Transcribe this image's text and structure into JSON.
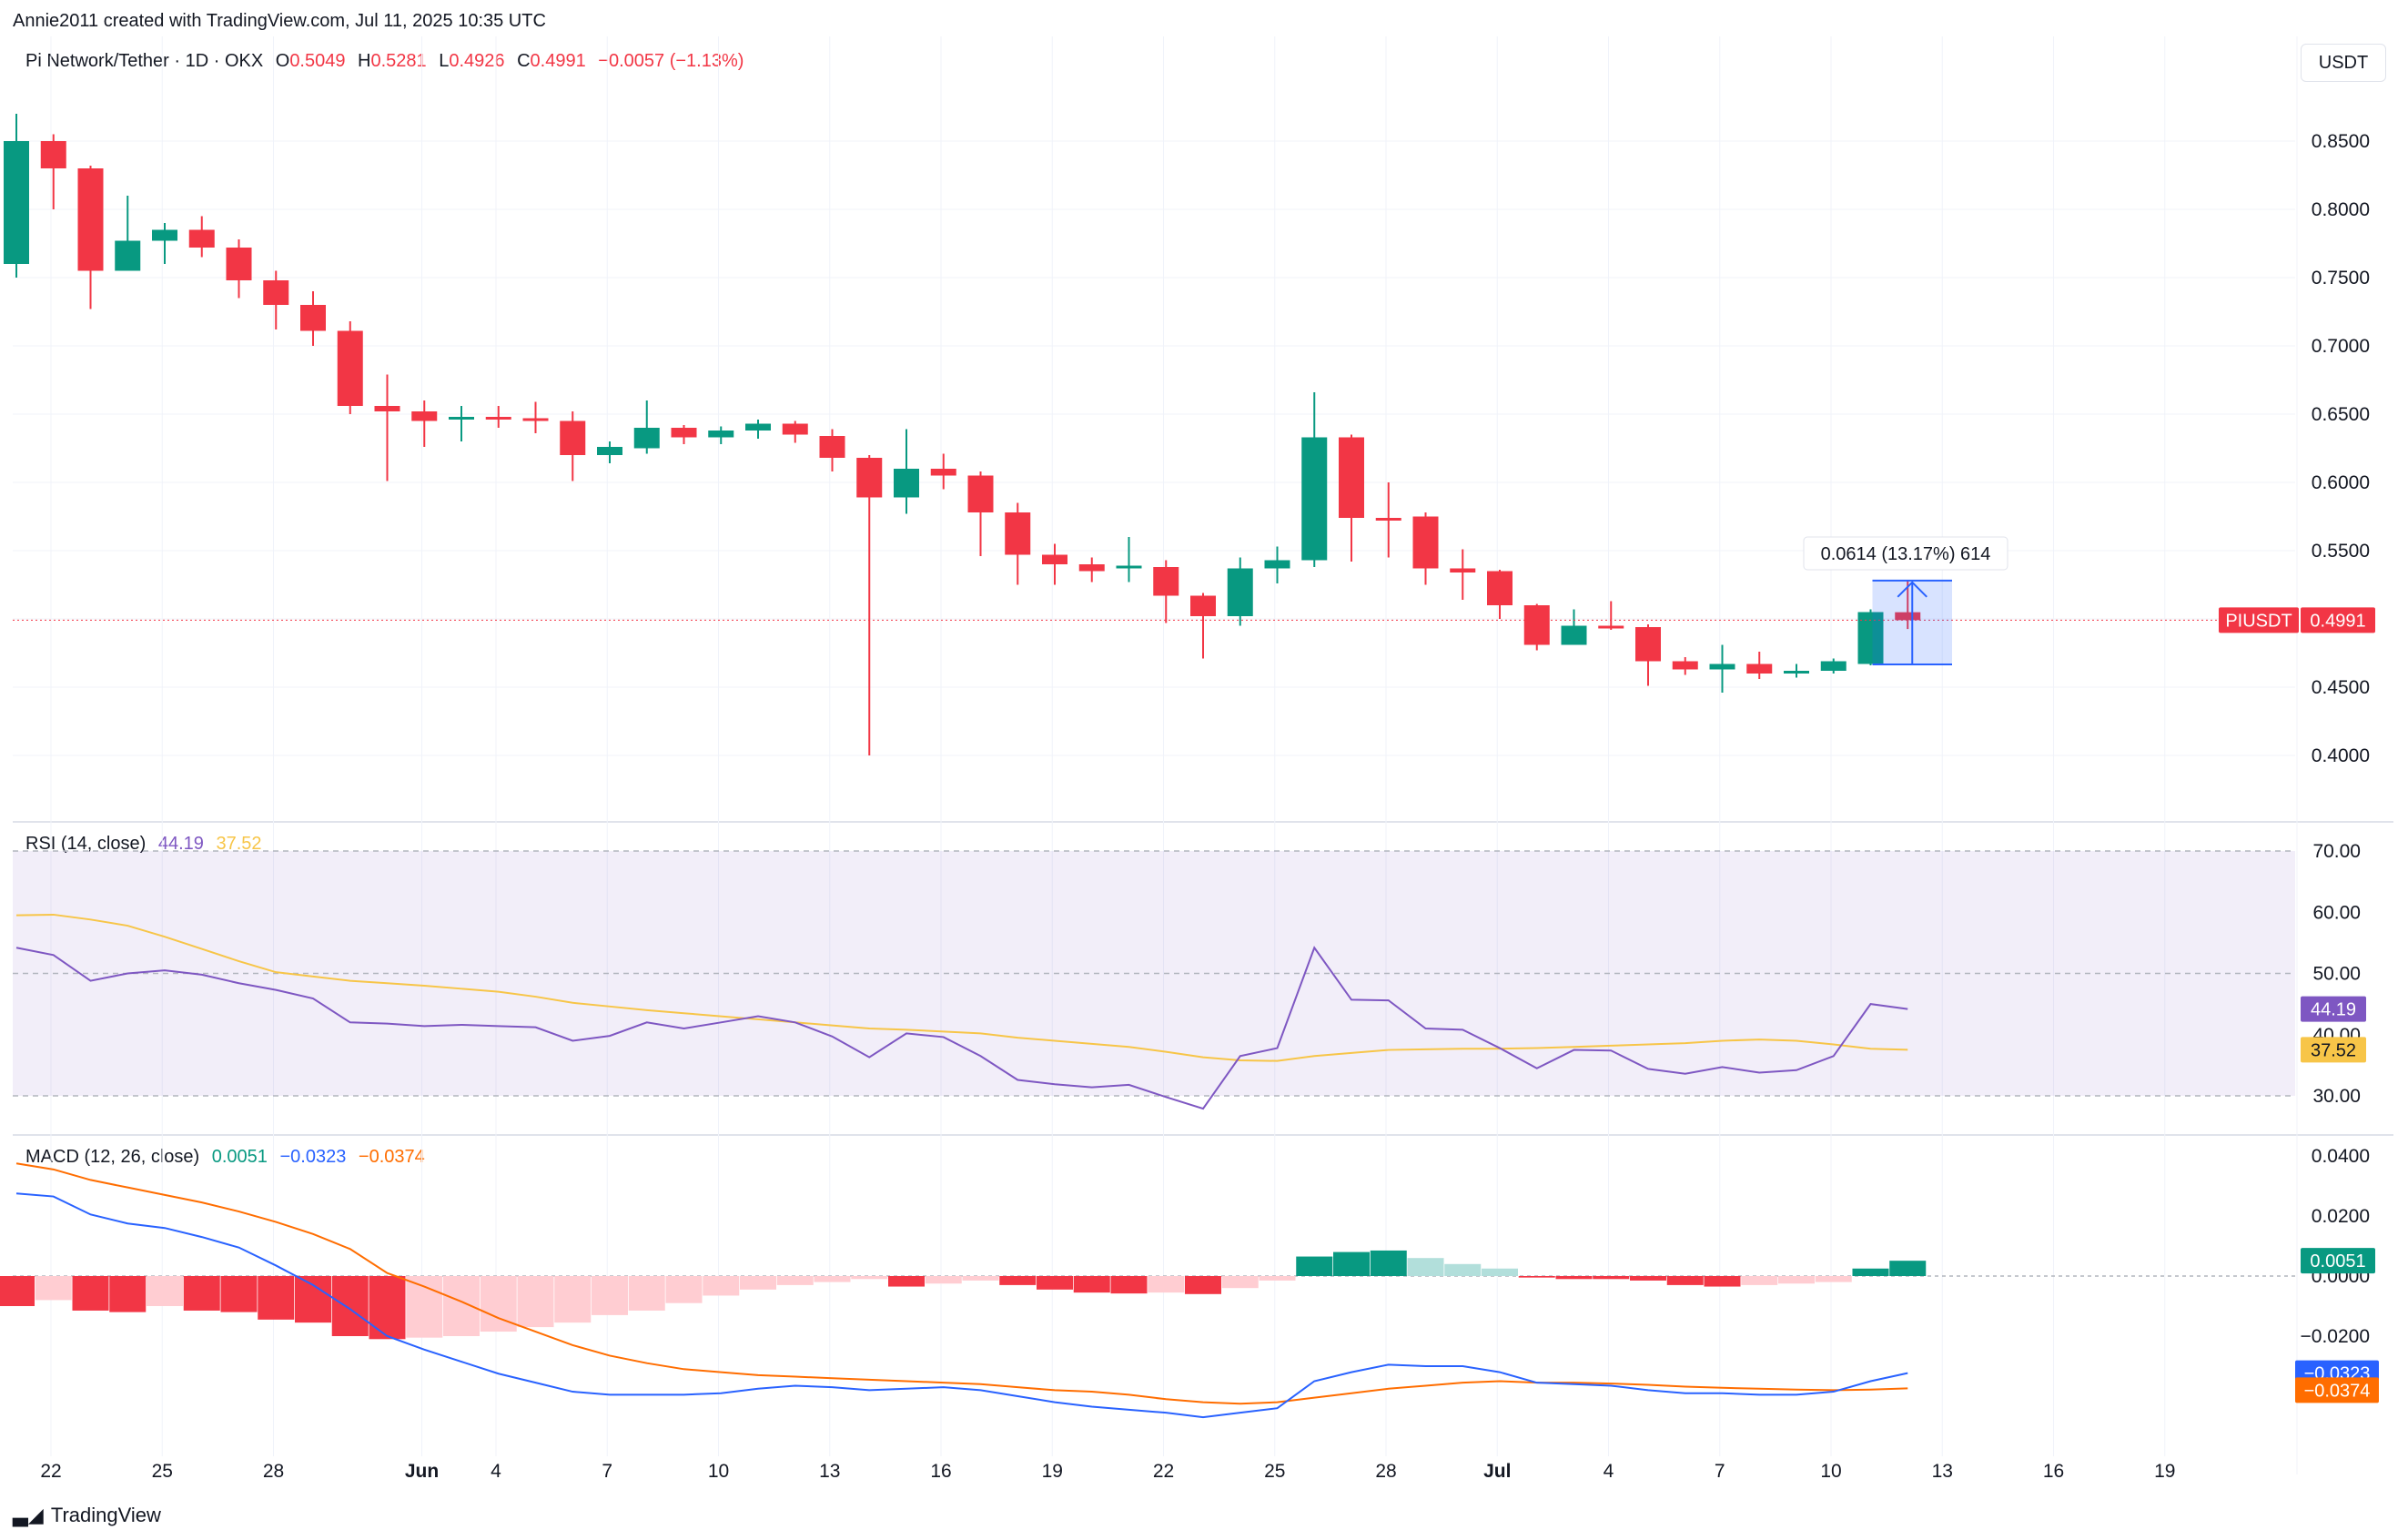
{
  "header": {
    "created_by": "Annie2011 created with TradingView.com, Jul 11, 2025 10:35 UTC",
    "currency": "USDT"
  },
  "price_legend": {
    "symbol": "Pi Network/Tether · 1D · OKX",
    "o_label": "O",
    "o": "0.5049",
    "h_label": "H",
    "h": "0.5281",
    "l_label": "L",
    "l": "0.4926",
    "c_label": "C",
    "c": "0.4991",
    "change": "−0.0057 (−1.13%)"
  },
  "rsi_legend": {
    "label": "RSI (14, close)",
    "rsi": "44.19",
    "ma": "37.52"
  },
  "macd_legend": {
    "label": "MACD (12, 26, close)",
    "hist": "0.0051",
    "macd": "−0.0323",
    "signal": "−0.0374"
  },
  "measure_label": "0.0614 (13.17%) 614",
  "footer": {
    "brand": "TradingView"
  },
  "colors": {
    "up": "#089981",
    "down": "#f23645",
    "rsi": "#7e57c2",
    "rsi_ma": "#f7c548",
    "macd": "#2962ff",
    "signal": "#ff6d00",
    "hist_up_light": "#b2dfdb",
    "hist_down_light": "#ffcdd2"
  },
  "chart_data": [
    {
      "type": "candlestick",
      "title": "Pi Network/Tether · 1D · OKX",
      "x_tick_labels": [
        "22",
        "25",
        "28",
        "Jun",
        "4",
        "7",
        "10",
        "13",
        "16",
        "19",
        "22",
        "25",
        "28",
        "Jul",
        "4",
        "7",
        "10",
        "13",
        "16",
        "19"
      ],
      "y_tick_labels": [
        "0.8500",
        "0.8000",
        "0.7500",
        "0.7000",
        "0.6500",
        "0.6000",
        "0.5500",
        "0.5000",
        "0.4500",
        "0.4000"
      ],
      "ylim": [
        0.377,
        0.874
      ],
      "last_price_label": "PIUSDT",
      "last_price": "0.4991",
      "candles": [
        {
          "o": 0.76,
          "h": 0.87,
          "l": 0.75,
          "c": 0.85
        },
        {
          "o": 0.85,
          "h": 0.855,
          "l": 0.8,
          "c": 0.83
        },
        {
          "o": 0.83,
          "h": 0.832,
          "l": 0.727,
          "c": 0.755
        },
        {
          "o": 0.755,
          "h": 0.81,
          "l": 0.755,
          "c": 0.777
        },
        {
          "o": 0.777,
          "h": 0.79,
          "l": 0.76,
          "c": 0.785
        },
        {
          "o": 0.785,
          "h": 0.795,
          "l": 0.765,
          "c": 0.772
        },
        {
          "o": 0.772,
          "h": 0.778,
          "l": 0.735,
          "c": 0.748
        },
        {
          "o": 0.748,
          "h": 0.755,
          "l": 0.712,
          "c": 0.73
        },
        {
          "o": 0.73,
          "h": 0.74,
          "l": 0.7,
          "c": 0.711
        },
        {
          "o": 0.711,
          "h": 0.718,
          "l": 0.65,
          "c": 0.656
        },
        {
          "o": 0.656,
          "h": 0.679,
          "l": 0.601,
          "c": 0.652
        },
        {
          "o": 0.652,
          "h": 0.66,
          "l": 0.626,
          "c": 0.645
        },
        {
          "o": 0.646,
          "h": 0.656,
          "l": 0.63,
          "c": 0.648
        },
        {
          "o": 0.648,
          "h": 0.656,
          "l": 0.64,
          "c": 0.646
        },
        {
          "o": 0.647,
          "h": 0.659,
          "l": 0.636,
          "c": 0.645
        },
        {
          "o": 0.645,
          "h": 0.652,
          "l": 0.601,
          "c": 0.62
        },
        {
          "o": 0.62,
          "h": 0.63,
          "l": 0.614,
          "c": 0.626
        },
        {
          "o": 0.625,
          "h": 0.66,
          "l": 0.621,
          "c": 0.64
        },
        {
          "o": 0.64,
          "h": 0.642,
          "l": 0.628,
          "c": 0.633
        },
        {
          "o": 0.633,
          "h": 0.641,
          "l": 0.628,
          "c": 0.638
        },
        {
          "o": 0.638,
          "h": 0.646,
          "l": 0.632,
          "c": 0.643
        },
        {
          "o": 0.643,
          "h": 0.645,
          "l": 0.629,
          "c": 0.635
        },
        {
          "o": 0.634,
          "h": 0.639,
          "l": 0.608,
          "c": 0.618
        },
        {
          "o": 0.618,
          "h": 0.62,
          "l": 0.4,
          "c": 0.589
        },
        {
          "o": 0.589,
          "h": 0.639,
          "l": 0.577,
          "c": 0.61
        },
        {
          "o": 0.61,
          "h": 0.621,
          "l": 0.595,
          "c": 0.605
        },
        {
          "o": 0.605,
          "h": 0.608,
          "l": 0.546,
          "c": 0.578
        },
        {
          "o": 0.578,
          "h": 0.585,
          "l": 0.525,
          "c": 0.547
        },
        {
          "o": 0.547,
          "h": 0.555,
          "l": 0.525,
          "c": 0.54
        },
        {
          "o": 0.54,
          "h": 0.545,
          "l": 0.527,
          "c": 0.535
        },
        {
          "o": 0.537,
          "h": 0.56,
          "l": 0.527,
          "c": 0.539
        },
        {
          "o": 0.538,
          "h": 0.543,
          "l": 0.497,
          "c": 0.517
        },
        {
          "o": 0.517,
          "h": 0.519,
          "l": 0.471,
          "c": 0.502
        },
        {
          "o": 0.502,
          "h": 0.545,
          "l": 0.495,
          "c": 0.537
        },
        {
          "o": 0.537,
          "h": 0.553,
          "l": 0.526,
          "c": 0.543
        },
        {
          "o": 0.543,
          "h": 0.666,
          "l": 0.538,
          "c": 0.633
        },
        {
          "o": 0.633,
          "h": 0.635,
          "l": 0.542,
          "c": 0.574
        },
        {
          "o": 0.574,
          "h": 0.6,
          "l": 0.545,
          "c": 0.573
        },
        {
          "o": 0.575,
          "h": 0.578,
          "l": 0.525,
          "c": 0.537
        },
        {
          "o": 0.537,
          "h": 0.551,
          "l": 0.514,
          "c": 0.534
        },
        {
          "o": 0.535,
          "h": 0.536,
          "l": 0.5,
          "c": 0.51
        },
        {
          "o": 0.51,
          "h": 0.511,
          "l": 0.477,
          "c": 0.481
        },
        {
          "o": 0.481,
          "h": 0.507,
          "l": 0.481,
          "c": 0.495
        },
        {
          "o": 0.495,
          "h": 0.513,
          "l": 0.492,
          "c": 0.494
        },
        {
          "o": 0.494,
          "h": 0.496,
          "l": 0.451,
          "c": 0.469
        },
        {
          "o": 0.469,
          "h": 0.472,
          "l": 0.459,
          "c": 0.463
        },
        {
          "o": 0.463,
          "h": 0.481,
          "l": 0.446,
          "c": 0.467
        },
        {
          "o": 0.467,
          "h": 0.476,
          "l": 0.456,
          "c": 0.46
        },
        {
          "o": 0.46,
          "h": 0.467,
          "l": 0.457,
          "c": 0.462
        },
        {
          "o": 0.462,
          "h": 0.471,
          "l": 0.46,
          "c": 0.469
        },
        {
          "o": 0.467,
          "h": 0.507,
          "l": 0.466,
          "c": 0.505
        },
        {
          "o": 0.5049,
          "h": 0.5281,
          "l": 0.4926,
          "c": 0.4991
        }
      ]
    },
    {
      "type": "line",
      "title": "RSI (14, close)",
      "y_tick_labels": [
        "70.00",
        "60.00",
        "50.00",
        "40.00",
        "30.00"
      ],
      "ylim": [
        25,
        74
      ],
      "band": [
        30,
        70
      ],
      "series": [
        {
          "name": "RSI",
          "values": [
            54.2,
            53.0,
            48.8,
            50.0,
            50.5,
            49.8,
            48.4,
            47.3,
            45.9,
            42.0,
            41.8,
            41.4,
            41.6,
            41.4,
            41.2,
            39.0,
            39.8,
            42.0,
            41.0,
            42.0,
            43.0,
            42.0,
            39.7,
            36.3,
            40.2,
            39.6,
            36.5,
            32.6,
            31.9,
            31.4,
            31.8,
            29.8,
            27.9,
            36.5,
            37.8,
            54.2,
            45.7,
            45.6,
            41.0,
            40.8,
            37.8,
            34.5,
            37.5,
            37.4,
            34.4,
            33.6,
            34.7,
            33.8,
            34.2,
            36.5,
            45.0,
            44.19
          ]
        },
        {
          "name": "RSI-based MA",
          "values": [
            59.5,
            59.6,
            58.8,
            57.8,
            56.0,
            54.0,
            52.0,
            50.2,
            49.5,
            48.8,
            48.4,
            48.0,
            47.5,
            47.0,
            46.2,
            45.2,
            44.6,
            44.0,
            43.5,
            43.0,
            42.5,
            42.0,
            41.5,
            41.0,
            40.8,
            40.5,
            40.2,
            39.5,
            39.0,
            38.5,
            38.0,
            37.2,
            36.3,
            35.8,
            35.7,
            36.5,
            37.0,
            37.5,
            37.6,
            37.7,
            37.7,
            37.8,
            38.0,
            38.2,
            38.4,
            38.6,
            39.0,
            39.2,
            39.0,
            38.4,
            37.7,
            37.52
          ]
        }
      ]
    },
    {
      "type": "bar",
      "title": "MACD (12, 26, close)",
      "y_tick_labels": [
        "0.0400",
        "0.0200",
        "0.0000",
        "−0.0200"
      ],
      "ylim": [
        -0.045,
        0.045
      ],
      "series": [
        {
          "name": "Histogram",
          "values": [
            -0.01,
            -0.008,
            -0.0115,
            -0.012,
            -0.01,
            -0.0115,
            -0.012,
            -0.0145,
            -0.0155,
            -0.02,
            -0.021,
            -0.0205,
            -0.02,
            -0.0185,
            -0.017,
            -0.0155,
            -0.013,
            -0.0115,
            -0.009,
            -0.0065,
            -0.0045,
            -0.003,
            -0.002,
            -0.001,
            -0.0035,
            -0.0025,
            -0.0015,
            -0.003,
            -0.0045,
            -0.0055,
            -0.0058,
            -0.0055,
            -0.006,
            -0.004,
            -0.0015,
            0.0065,
            0.008,
            0.0085,
            0.006,
            0.004,
            0.0025,
            -0.0005,
            -0.001,
            -0.001,
            -0.0015,
            -0.003,
            -0.0035,
            -0.003,
            -0.0025,
            -0.002,
            0.0025,
            0.0051
          ]
        },
        {
          "name": "MACD",
          "values": [
            0.0275,
            0.0265,
            0.0205,
            0.0175,
            0.016,
            0.013,
            0.0095,
            0.0035,
            -0.003,
            -0.011,
            -0.02,
            -0.0245,
            -0.0285,
            -0.0325,
            -0.0355,
            -0.0385,
            -0.0395,
            -0.0395,
            -0.0395,
            -0.039,
            -0.0375,
            -0.0365,
            -0.037,
            -0.038,
            -0.0375,
            -0.037,
            -0.038,
            -0.04,
            -0.042,
            -0.0435,
            -0.0445,
            -0.0455,
            -0.047,
            -0.0455,
            -0.044,
            -0.035,
            -0.032,
            -0.0295,
            -0.03,
            -0.03,
            -0.032,
            -0.0355,
            -0.036,
            -0.0365,
            -0.038,
            -0.039,
            -0.039,
            -0.0395,
            -0.0395,
            -0.0385,
            -0.035,
            -0.0323
          ]
        },
        {
          "name": "Signal",
          "values": [
            0.0375,
            0.0355,
            0.032,
            0.0295,
            0.027,
            0.0245,
            0.0215,
            0.018,
            0.014,
            0.009,
            0.001,
            -0.0035,
            -0.0085,
            -0.014,
            -0.0185,
            -0.023,
            -0.0265,
            -0.029,
            -0.031,
            -0.032,
            -0.033,
            -0.0335,
            -0.034,
            -0.0345,
            -0.035,
            -0.0355,
            -0.036,
            -0.037,
            -0.038,
            -0.0385,
            -0.0395,
            -0.041,
            -0.042,
            -0.0425,
            -0.042,
            -0.0405,
            -0.039,
            -0.0375,
            -0.0365,
            -0.0355,
            -0.035,
            -0.0355,
            -0.0355,
            -0.0358,
            -0.0362,
            -0.0368,
            -0.0372,
            -0.0375,
            -0.0378,
            -0.038,
            -0.0378,
            -0.0374
          ]
        }
      ]
    }
  ]
}
